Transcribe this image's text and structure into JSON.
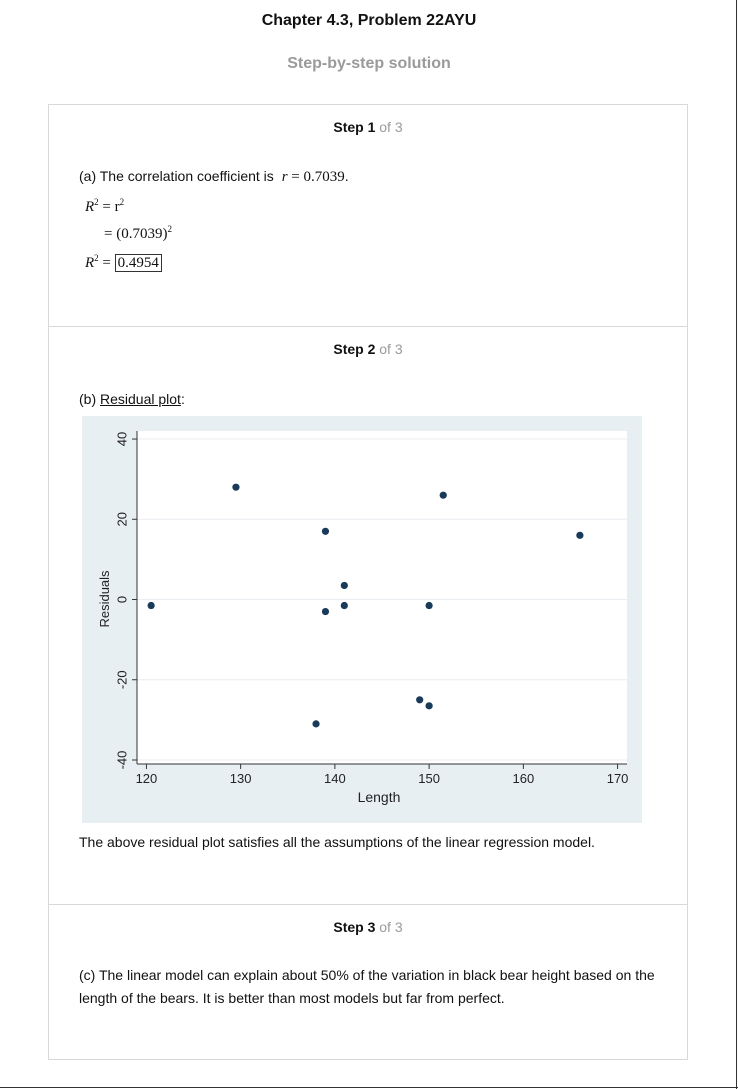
{
  "header": {
    "title": "Chapter 4.3, Problem 22AYU",
    "subtitle": "Step-by-step solution"
  },
  "steps": [
    {
      "label": "Step 1",
      "of": " of 3"
    },
    {
      "label": "Step 2",
      "of": " of 3"
    },
    {
      "label": "Step 3",
      "of": " of 3"
    }
  ],
  "step1": {
    "intro": "(a) The correlation coefficient is",
    "r_label": "r",
    "r_expr": " = 0.7039",
    "r_period": ".",
    "eq1_lhs": "R",
    "eq1_exp": "2",
    "eq1_rhs": " = r",
    "eq1_rhs_exp": "2",
    "eq2": "= (0.7039)",
    "eq2_exp": "2",
    "eq3_lhs": "R",
    "eq3_exp": "2",
    "eq3_eq": " = ",
    "answer": "0.4954"
  },
  "step2": {
    "intro_prefix": "(b) ",
    "intro_link": "Residual plot",
    "intro_suffix": ":",
    "conclusion": "The above residual plot satisfies all the assumptions of the linear regression model."
  },
  "step3": {
    "text": "(c) The linear model can explain about 50% of the variation in black bear height based on the length of the bears. It is better than most models but far from perfect."
  },
  "chart_data": {
    "type": "scatter",
    "xlabel": "Length",
    "ylabel": "Residuals",
    "xlim": [
      119,
      171
    ],
    "ylim": [
      -41,
      42
    ],
    "xticks": [
      120,
      130,
      140,
      150,
      160,
      170
    ],
    "yticks": [
      -40,
      -20,
      0,
      20,
      40
    ],
    "grid": true,
    "colors": {
      "point": "#1a3a5a",
      "background": "#e8eff3",
      "plot_bg": "#ffffff",
      "grid": "#e9eef2"
    },
    "points": [
      {
        "x": 120.5,
        "y": -1.5
      },
      {
        "x": 129.5,
        "y": 28
      },
      {
        "x": 138,
        "y": -31
      },
      {
        "x": 139,
        "y": 17
      },
      {
        "x": 139,
        "y": -3
      },
      {
        "x": 141,
        "y": 3.5
      },
      {
        "x": 141,
        "y": -1.5
      },
      {
        "x": 149,
        "y": -25
      },
      {
        "x": 150,
        "y": -1.5
      },
      {
        "x": 150,
        "y": -26.5
      },
      {
        "x": 151.5,
        "y": 26
      },
      {
        "x": 166,
        "y": 16
      }
    ]
  }
}
